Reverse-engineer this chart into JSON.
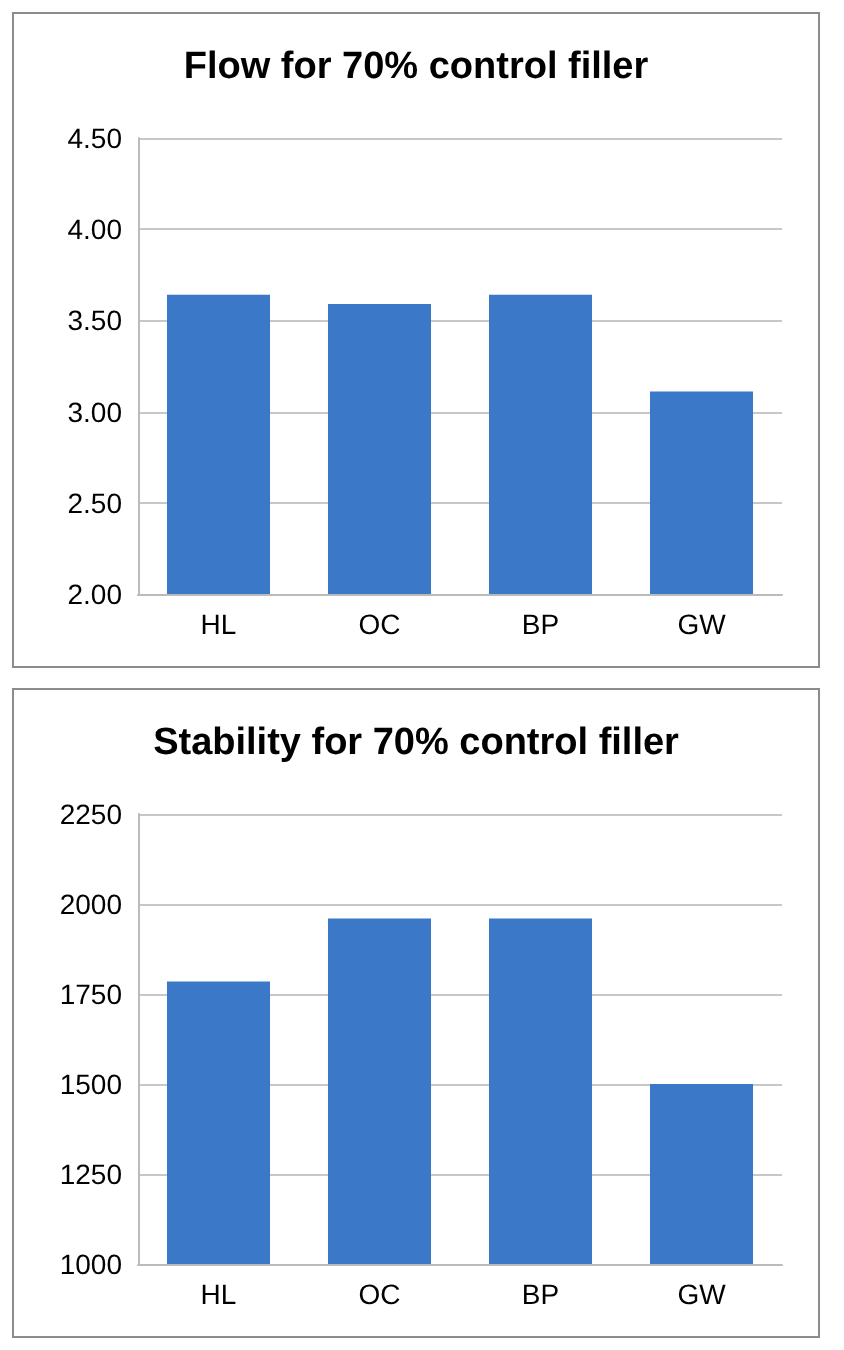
{
  "chart_data": [
    {
      "type": "bar",
      "title": "Flow for 70% control filler",
      "categories": [
        "HL",
        "OC",
        "BP",
        "GW"
      ],
      "values": [
        3.64,
        3.59,
        3.64,
        3.11
      ],
      "color": "#3b78c8",
      "ylim": [
        2,
        4.5
      ],
      "yticks": [
        {
          "value": 2,
          "label": "2.00"
        },
        {
          "value": 2.5,
          "label": "2.50"
        },
        {
          "value": 3,
          "label": "3.00"
        },
        {
          "value": 3.5,
          "label": "3.50"
        },
        {
          "value": 4,
          "label": "4.00"
        },
        {
          "value": 4.5,
          "label": "4.50"
        }
      ],
      "grid": "y"
    },
    {
      "type": "bar",
      "title": "Stability for 70% control filler",
      "categories": [
        "HL",
        "OC",
        "BP",
        "GW"
      ],
      "values": [
        1785,
        1960,
        1960,
        1500
      ],
      "color": "#3b78c8",
      "ylim": [
        1000,
        2250
      ],
      "yticks": [
        1000,
        1250,
        1500,
        1750,
        2000,
        2250
      ],
      "grid": "y"
    }
  ]
}
